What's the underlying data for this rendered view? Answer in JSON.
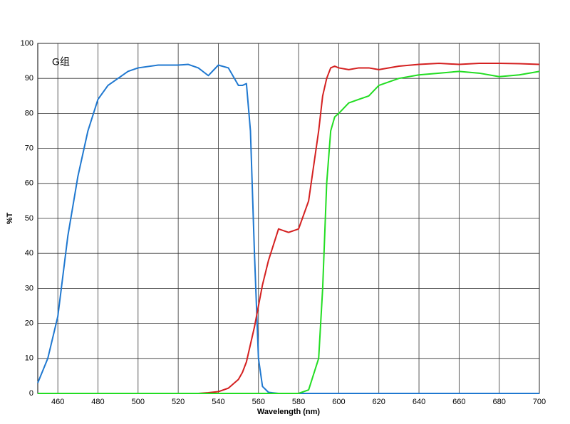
{
  "chart_data": {
    "type": "line",
    "annotation": "G组",
    "x_label": "Wavelength (nm)",
    "y_label": "%T",
    "x": [
      450,
      455,
      460,
      465,
      470,
      475,
      480,
      485,
      490,
      495,
      500,
      510,
      520,
      525,
      530,
      535,
      540,
      545,
      550,
      552,
      554,
      556,
      558,
      560,
      562,
      565,
      570,
      575,
      580,
      585,
      590,
      592,
      594,
      596,
      598,
      600,
      605,
      610,
      615,
      620,
      630,
      640,
      650,
      660,
      670,
      680,
      690,
      700
    ],
    "series": [
      {
        "color": "#1f78d0",
        "values": [
          3,
          10,
          22,
          45,
          62,
          75,
          84,
          88,
          90,
          92,
          93,
          93.8,
          93.8,
          94,
          93,
          90.8,
          93.8,
          93,
          88,
          88,
          88.5,
          75,
          40,
          10,
          2,
          0.3,
          0,
          0,
          0,
          0,
          0,
          0,
          0,
          0,
          0,
          0,
          0,
          0,
          0,
          0,
          0,
          0,
          0,
          0,
          0,
          0,
          0,
          0
        ]
      },
      {
        "color": "#d42020",
        "values": [
          0,
          0,
          0,
          0,
          0,
          0,
          0,
          0,
          0,
          0,
          0,
          0,
          0,
          0,
          0,
          0.2,
          0.5,
          1.5,
          4,
          6,
          9,
          14,
          19,
          25,
          31,
          38,
          47,
          46,
          47,
          55,
          75,
          85,
          90,
          93,
          93.5,
          93,
          92.5,
          93,
          93,
          92.5,
          93.5,
          94,
          94.3,
          94,
          94.3,
          94.3,
          94.2,
          94
        ]
      },
      {
        "color": "#22dd22",
        "values": [
          0,
          0,
          0,
          0,
          0,
          0,
          0,
          0,
          0,
          0,
          0,
          0,
          0,
          0,
          0,
          0,
          0,
          0,
          0,
          0,
          0,
          0,
          0,
          0,
          0,
          0,
          0,
          0,
          0,
          1,
          10,
          30,
          60,
          75,
          79,
          80,
          83,
          84,
          85,
          88,
          90,
          91,
          91.5,
          92,
          91.5,
          90.5,
          91,
          92
        ]
      }
    ],
    "xlim": [
      450,
      700
    ],
    "xticks": [
      460,
      480,
      500,
      520,
      540,
      560,
      580,
      600,
      620,
      640,
      660,
      680,
      700
    ],
    "ylim": [
      0,
      100
    ],
    "yticks": [
      0,
      10,
      20,
      30,
      40,
      50,
      60,
      70,
      80,
      90,
      100
    ],
    "grid": true
  }
}
